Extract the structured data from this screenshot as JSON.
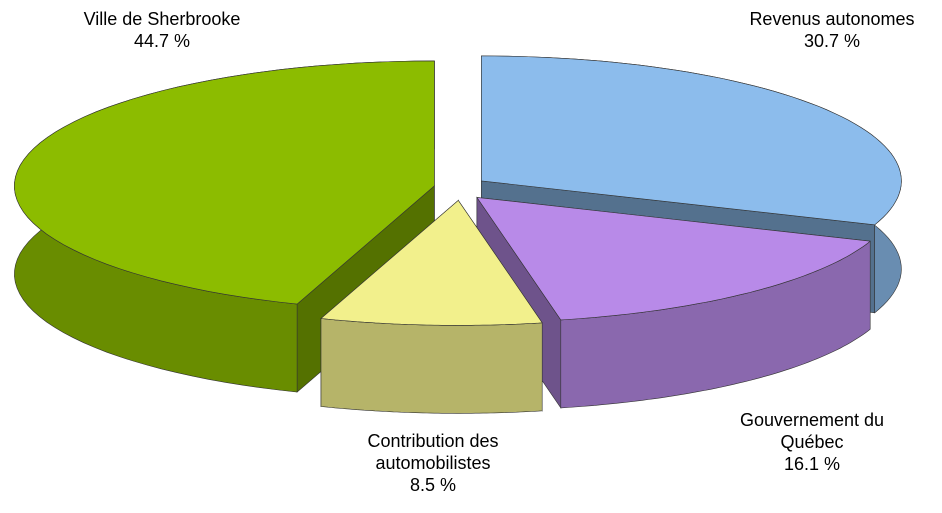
{
  "chart_data": {
    "type": "pie3d",
    "categories": [
      "Revenus autonomes",
      "Gouvernement du Québec",
      "Contribution des automobilistes",
      "Ville de Sherbrooke"
    ],
    "values": [
      30.7,
      16.1,
      8.5,
      44.7
    ],
    "value_labels": [
      "30.7 %",
      "16.1 %",
      "8.5 %",
      "44.7 %"
    ],
    "colors": [
      "#8cbcec",
      "#b88ae8",
      "#f2f08c",
      "#8cbc00"
    ]
  }
}
